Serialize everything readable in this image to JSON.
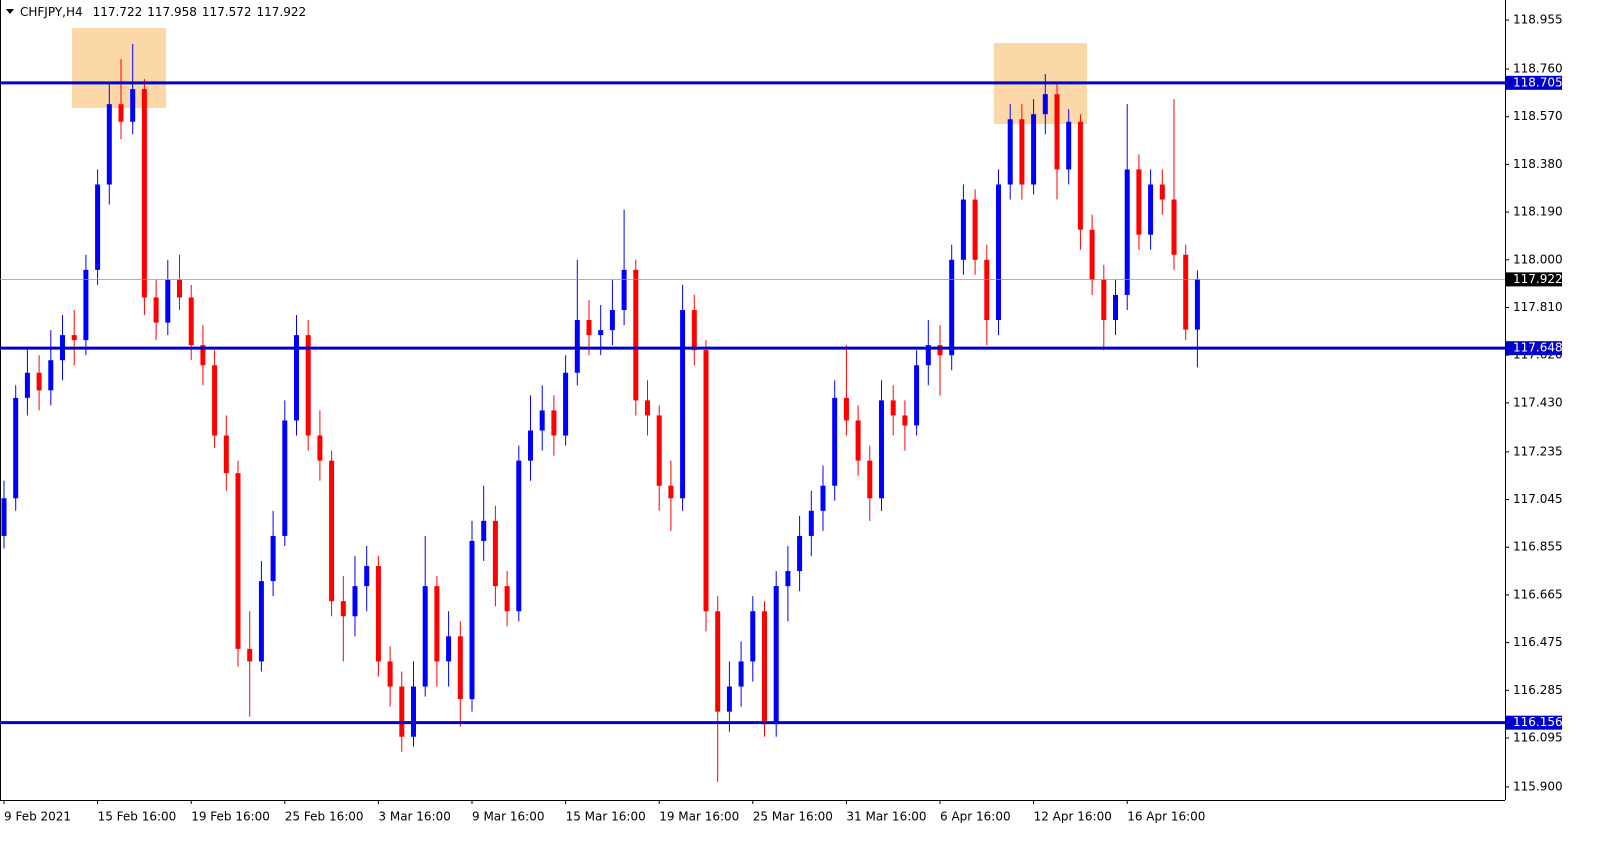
{
  "chart_data": {
    "type": "candlestick",
    "symbol": "CHFJPY,H4",
    "up_color": "#0000ff",
    "down_color": "#ff0000",
    "level_color": "#0000cc",
    "levels": [
      118.705,
      117.648,
      116.156
    ],
    "ylim": [
      115.848,
      119.035
    ],
    "yticks": [
      118.955,
      {
        "value": 118.76,
        "label": "118.760"
      },
      {
        "value": 118.57,
        "label": "118.570"
      },
      {
        "value": 118.38,
        "label": "118.380"
      },
      {
        "value": 118.19,
        "label": "118.190"
      },
      {
        "value": 118,
        "label": "118.000"
      },
      {
        "value": 117.81,
        "label": "117.810"
      },
      {
        "value": 117.62,
        "label": "117.620"
      },
      {
        "value": 117.43,
        "label": "117.430"
      },
      117.235,
      117.045,
      116.855,
      116.665,
      116.475,
      116.285,
      116.095,
      {
        "value": 115.9,
        "label": "115.900"
      }
    ],
    "categories": [
      "9 Feb 2021",
      null,
      null,
      null,
      null,
      null,
      null,
      null,
      "15 Feb 16:00",
      null,
      null,
      null,
      null,
      null,
      null,
      null,
      "19 Feb 16:00",
      null,
      null,
      null,
      null,
      null,
      null,
      null,
      "25 Feb 16:00",
      null,
      null,
      null,
      null,
      null,
      null,
      null,
      "3 Mar 16:00",
      null,
      null,
      null,
      null,
      null,
      null,
      null,
      "9 Mar 16:00",
      null,
      null,
      null,
      null,
      null,
      null,
      null,
      "15 Mar 16:00",
      null,
      null,
      null,
      null,
      null,
      null,
      null,
      "19 Mar 16:00",
      null,
      null,
      null,
      null,
      null,
      null,
      null,
      "25 Mar 16:00",
      null,
      null,
      null,
      null,
      null,
      null,
      null,
      "31 Mar 16:00",
      null,
      null,
      null,
      null,
      null,
      null,
      null,
      "6 Apr 16:00",
      null,
      null,
      null,
      null,
      null,
      null,
      null,
      "12 Apr 16:00",
      null,
      null,
      null,
      null,
      null,
      null,
      null,
      "16 Apr 16:00",
      null,
      null,
      null,
      null,
      null,
      null
    ],
    "open": [
      116.9,
      117.05,
      117.45,
      117.55,
      117.48,
      117.6,
      117.7,
      117.68,
      117.96,
      118.3,
      118.62,
      118.55,
      118.68,
      117.85,
      117.75,
      117.92,
      117.85,
      117.66,
      117.58,
      117.3,
      117.15,
      116.45,
      116.4,
      116.72,
      116.9,
      117.36,
      117.7,
      117.3,
      117.2,
      116.64,
      116.58,
      116.7,
      116.78,
      116.4,
      116.3,
      116.1,
      116.3,
      116.7,
      116.4,
      116.5,
      116.25,
      116.88,
      116.96,
      116.7,
      116.6,
      117.2,
      117.32,
      117.4,
      117.3,
      117.55,
      117.76,
      117.7,
      117.72,
      117.8,
      117.96,
      117.44,
      117.38,
      117.1,
      117.05,
      117.8,
      117.64,
      116.6,
      116.2,
      116.3,
      116.4,
      116.6,
      116.15,
      116.7,
      116.76,
      116.9,
      117.0,
      117.1,
      117.45,
      117.36,
      117.2,
      117.05,
      117.44,
      117.38,
      117.34,
      117.58,
      117.66,
      117.62,
      118.0,
      118.24,
      118.0,
      117.76,
      118.3,
      118.56,
      118.3,
      118.58,
      118.66,
      118.36,
      118.55,
      118.12,
      117.92,
      117.76,
      117.86,
      118.36,
      118.1,
      118.3,
      118.24,
      118.02,
      117.722
    ],
    "high": [
      117.12,
      117.5,
      117.65,
      117.62,
      117.72,
      117.78,
      117.8,
      118.02,
      118.36,
      118.7,
      118.8,
      118.86,
      118.72,
      117.92,
      118.0,
      118.02,
      117.9,
      117.74,
      117.64,
      117.38,
      117.2,
      116.6,
      116.8,
      117.0,
      117.44,
      117.78,
      117.76,
      117.4,
      117.24,
      116.74,
      116.82,
      116.86,
      116.82,
      116.46,
      116.36,
      116.4,
      116.9,
      116.74,
      116.6,
      116.56,
      116.96,
      117.1,
      117.02,
      116.76,
      117.26,
      117.46,
      117.5,
      117.46,
      117.62,
      118.0,
      117.84,
      117.82,
      117.92,
      118.2,
      118.0,
      117.52,
      117.42,
      117.2,
      117.9,
      117.86,
      117.68,
      116.66,
      116.4,
      116.48,
      116.66,
      116.64,
      116.76,
      116.86,
      116.98,
      117.08,
      117.18,
      117.52,
      117.66,
      117.42,
      117.26,
      117.52,
      117.5,
      117.44,
      117.64,
      117.76,
      117.74,
      118.06,
      118.3,
      118.28,
      118.06,
      118.36,
      118.62,
      118.62,
      118.64,
      118.74,
      118.7,
      118.6,
      118.58,
      118.18,
      117.98,
      117.92,
      118.62,
      118.42,
      118.36,
      118.36,
      118.64,
      118.06,
      117.958
    ],
    "low": [
      116.85,
      117.0,
      117.38,
      117.4,
      117.42,
      117.52,
      117.58,
      117.62,
      117.9,
      118.22,
      118.48,
      118.5,
      117.78,
      117.68,
      117.7,
      117.8,
      117.6,
      117.5,
      117.25,
      117.08,
      116.38,
      116.18,
      116.36,
      116.66,
      116.86,
      117.3,
      117.24,
      117.12,
      116.58,
      116.4,
      116.5,
      116.6,
      116.34,
      116.22,
      116.04,
      116.06,
      116.26,
      116.3,
      116.3,
      116.14,
      116.2,
      116.8,
      116.62,
      116.54,
      116.56,
      117.12,
      117.24,
      117.22,
      117.26,
      117.5,
      117.62,
      117.62,
      117.66,
      117.74,
      117.38,
      117.3,
      117.0,
      116.92,
      117.0,
      117.58,
      116.52,
      115.92,
      116.12,
      116.22,
      116.32,
      116.1,
      116.1,
      116.56,
      116.68,
      116.82,
      116.92,
      117.04,
      117.3,
      117.14,
      116.96,
      117.0,
      117.3,
      117.24,
      117.3,
      117.5,
      117.46,
      117.56,
      117.94,
      117.94,
      117.66,
      117.7,
      118.24,
      118.24,
      118.26,
      118.5,
      118.24,
      118.3,
      118.04,
      117.86,
      117.64,
      117.7,
      117.8,
      118.04,
      118.04,
      118.18,
      117.96,
      117.68,
      117.572
    ],
    "close": [
      117.05,
      117.45,
      117.55,
      117.48,
      117.6,
      117.7,
      117.68,
      117.96,
      118.3,
      118.62,
      118.55,
      118.68,
      117.85,
      117.75,
      117.92,
      117.85,
      117.66,
      117.58,
      117.3,
      117.15,
      116.45,
      116.4,
      116.72,
      116.9,
      117.36,
      117.7,
      117.3,
      117.2,
      116.64,
      116.58,
      116.7,
      116.78,
      116.4,
      116.3,
      116.1,
      116.3,
      116.7,
      116.4,
      116.5,
      116.25,
      116.88,
      116.96,
      116.7,
      116.6,
      117.2,
      117.32,
      117.4,
      117.3,
      117.55,
      117.76,
      117.7,
      117.72,
      117.8,
      117.96,
      117.44,
      117.38,
      117.1,
      117.05,
      117.8,
      117.64,
      116.6,
      116.2,
      116.3,
      116.4,
      116.6,
      116.15,
      116.7,
      116.76,
      116.9,
      117.0,
      117.1,
      117.45,
      117.36,
      117.2,
      117.05,
      117.44,
      117.38,
      117.34,
      117.58,
      117.66,
      117.62,
      118.0,
      118.24,
      118.0,
      117.76,
      118.3,
      118.56,
      118.3,
      118.58,
      118.66,
      118.36,
      118.55,
      118.12,
      117.92,
      117.76,
      117.86,
      118.36,
      118.1,
      118.3,
      118.24,
      118.02,
      117.722,
      117.922
    ]
  }
}
